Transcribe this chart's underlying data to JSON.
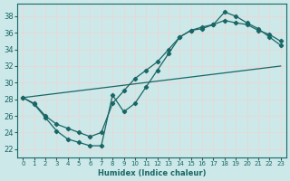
{
  "xlabel": "Humidex (Indice chaleur)",
  "xlim": [
    -0.5,
    23.5
  ],
  "ylim": [
    21.0,
    39.5
  ],
  "yticks": [
    22,
    24,
    26,
    28,
    30,
    32,
    34,
    36,
    38
  ],
  "xticks": [
    0,
    1,
    2,
    3,
    4,
    5,
    6,
    7,
    8,
    9,
    10,
    11,
    12,
    13,
    14,
    15,
    16,
    17,
    18,
    19,
    20,
    21,
    22,
    23
  ],
  "bg_color": "#cce8e8",
  "grid_color": "#e8d8d8",
  "line_color": "#1a6666",
  "curves": [
    {
      "x": [
        0,
        1,
        2,
        3,
        4,
        5,
        6,
        7,
        8,
        9,
        10,
        11,
        12,
        13,
        14,
        15,
        16,
        17,
        18,
        19,
        20,
        21,
        22,
        23
      ],
      "y": [
        28.2,
        27.4,
        25.8,
        24.2,
        23.2,
        22.8,
        22.4,
        22.4,
        28.5,
        26.5,
        27.5,
        29.5,
        31.5,
        33.5,
        35.5,
        36.3,
        36.5,
        37.0,
        38.5,
        38.0,
        37.2,
        36.5,
        35.5,
        34.5
      ],
      "marker": true
    },
    {
      "x": [
        0,
        1,
        2,
        3,
        4,
        5,
        6,
        7,
        8,
        9,
        10,
        11,
        12,
        13,
        14,
        15,
        16,
        17,
        18,
        19,
        20,
        21,
        22,
        23
      ],
      "y": [
        28.2,
        27.5,
        26.0,
        25.0,
        24.5,
        24.0,
        23.5,
        24.0,
        27.5,
        29.0,
        30.5,
        31.5,
        32.5,
        34.0,
        35.5,
        36.3,
        36.7,
        37.0,
        37.5,
        37.2,
        37.0,
        36.3,
        35.8,
        35.0
      ],
      "marker": true
    },
    {
      "x": [
        0,
        23
      ],
      "y": [
        28.2,
        32.0
      ],
      "marker": false
    }
  ]
}
